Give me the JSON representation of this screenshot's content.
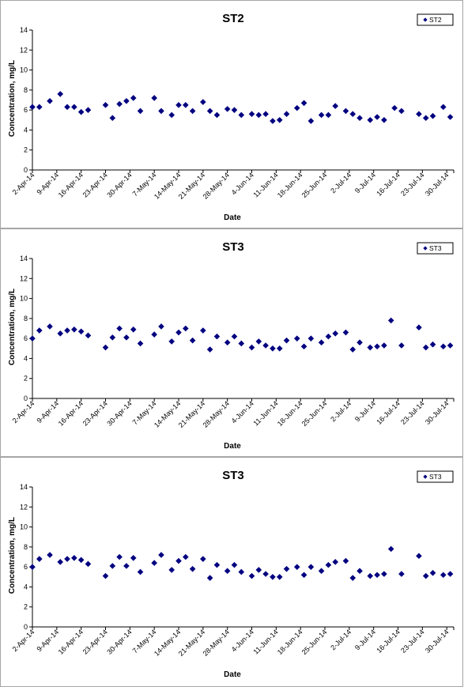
{
  "chart_data": [
    {
      "type": "scatter",
      "title": "ST2",
      "xlabel": "Date",
      "ylabel": "Concentration, mg/L",
      "ylim": [
        0,
        14
      ],
      "yticks": [
        0,
        2,
        4,
        6,
        8,
        10,
        12,
        14
      ],
      "xlim": [
        "2014-04-02",
        "2014-08-01"
      ],
      "xtick_labels": [
        "2-Apr-14",
        "9-Apr-14",
        "16-Apr-14",
        "23-Apr-14",
        "30-Apr-14",
        "7-May-14",
        "14-May-14",
        "21-May-14",
        "28-May-14",
        "4-Jun-14",
        "11-Jun-14",
        "18-Jun-14",
        "25-Jun-14",
        "2-Jul-14",
        "9-Jul-14",
        "16-Jul-14",
        "23-Jul-14",
        "30-Jul-14"
      ],
      "legend_position": "top-right",
      "marker_color": "#000080",
      "series": [
        {
          "name": "ST2",
          "points": [
            [
              "2014-04-02",
              6.3
            ],
            [
              "2014-04-04",
              6.3
            ],
            [
              "2014-04-07",
              6.9
            ],
            [
              "2014-04-10",
              7.6
            ],
            [
              "2014-04-12",
              6.3
            ],
            [
              "2014-04-14",
              6.3
            ],
            [
              "2014-04-16",
              5.8
            ],
            [
              "2014-04-18",
              6.0
            ],
            [
              "2014-04-23",
              6.5
            ],
            [
              "2014-04-25",
              5.2
            ],
            [
              "2014-04-27",
              6.6
            ],
            [
              "2014-04-29",
              6.9
            ],
            [
              "2014-05-01",
              7.2
            ],
            [
              "2014-05-03",
              5.9
            ],
            [
              "2014-05-07",
              7.2
            ],
            [
              "2014-05-09",
              5.9
            ],
            [
              "2014-05-12",
              5.5
            ],
            [
              "2014-05-14",
              6.5
            ],
            [
              "2014-05-16",
              6.5
            ],
            [
              "2014-05-18",
              5.9
            ],
            [
              "2014-05-21",
              6.8
            ],
            [
              "2014-05-23",
              5.9
            ],
            [
              "2014-05-25",
              5.5
            ],
            [
              "2014-05-28",
              6.1
            ],
            [
              "2014-05-30",
              6.0
            ],
            [
              "2014-06-01",
              5.5
            ],
            [
              "2014-06-04",
              5.6
            ],
            [
              "2014-06-06",
              5.5
            ],
            [
              "2014-06-08",
              5.6
            ],
            [
              "2014-06-10",
              4.9
            ],
            [
              "2014-06-12",
              5.0
            ],
            [
              "2014-06-14",
              5.6
            ],
            [
              "2014-06-17",
              6.2
            ],
            [
              "2014-06-19",
              6.7
            ],
            [
              "2014-06-21",
              4.9
            ],
            [
              "2014-06-24",
              5.5
            ],
            [
              "2014-06-26",
              5.5
            ],
            [
              "2014-06-28",
              6.4
            ],
            [
              "2014-07-01",
              5.9
            ],
            [
              "2014-07-03",
              5.6
            ],
            [
              "2014-07-05",
              5.2
            ],
            [
              "2014-07-08",
              5.0
            ],
            [
              "2014-07-10",
              5.3
            ],
            [
              "2014-07-12",
              5.0
            ],
            [
              "2014-07-15",
              6.2
            ],
            [
              "2014-07-17",
              5.9
            ],
            [
              "2014-07-22",
              5.6
            ],
            [
              "2014-07-24",
              5.2
            ],
            [
              "2014-07-26",
              5.4
            ],
            [
              "2014-07-29",
              6.3
            ],
            [
              "2014-07-31",
              5.3
            ]
          ]
        }
      ]
    },
    {
      "type": "scatter",
      "title": "ST3",
      "xlabel": "Date",
      "ylabel": "Concentration, mg/L",
      "ylim": [
        0,
        14
      ],
      "yticks": [
        0,
        2,
        4,
        6,
        8,
        10,
        12,
        14
      ],
      "xlim": [
        "2014-04-02",
        "2014-08-01"
      ],
      "xtick_labels": [
        "2-Apr-14",
        "9-Apr-14",
        "16-Apr-14",
        "23-Apr-14",
        "30-Apr-14",
        "7-May-14",
        "14-May-14",
        "21-May-14",
        "28-May-14",
        "4-Jun-14",
        "11-Jun-14",
        "18-Jun-14",
        "25-Jun-14",
        "2-Jul-14",
        "9-Jul-14",
        "16-Jul-14",
        "23-Jul-14",
        "30-Jul-14"
      ],
      "legend_position": "top-right",
      "marker_color": "#000080",
      "series": [
        {
          "name": "ST3",
          "points": [
            [
              "2014-04-02",
              6.0
            ],
            [
              "2014-04-04",
              6.8
            ],
            [
              "2014-04-07",
              7.2
            ],
            [
              "2014-04-10",
              6.5
            ],
            [
              "2014-04-12",
              6.8
            ],
            [
              "2014-04-14",
              6.9
            ],
            [
              "2014-04-16",
              6.7
            ],
            [
              "2014-04-18",
              6.3
            ],
            [
              "2014-04-23",
              5.1
            ],
            [
              "2014-04-25",
              6.1
            ],
            [
              "2014-04-27",
              7.0
            ],
            [
              "2014-04-29",
              6.1
            ],
            [
              "2014-05-01",
              6.9
            ],
            [
              "2014-05-03",
              5.5
            ],
            [
              "2014-05-07",
              6.4
            ],
            [
              "2014-05-09",
              7.2
            ],
            [
              "2014-05-12",
              5.7
            ],
            [
              "2014-05-14",
              6.6
            ],
            [
              "2014-05-16",
              7.0
            ],
            [
              "2014-05-18",
              5.8
            ],
            [
              "2014-05-21",
              6.8
            ],
            [
              "2014-05-23",
              4.9
            ],
            [
              "2014-05-25",
              6.2
            ],
            [
              "2014-05-28",
              5.6
            ],
            [
              "2014-05-30",
              6.2
            ],
            [
              "2014-06-01",
              5.5
            ],
            [
              "2014-06-04",
              5.1
            ],
            [
              "2014-06-06",
              5.7
            ],
            [
              "2014-06-08",
              5.3
            ],
            [
              "2014-06-10",
              5.0
            ],
            [
              "2014-06-12",
              5.0
            ],
            [
              "2014-06-14",
              5.8
            ],
            [
              "2014-06-17",
              6.0
            ],
            [
              "2014-06-19",
              5.2
            ],
            [
              "2014-06-21",
              6.0
            ],
            [
              "2014-06-24",
              5.6
            ],
            [
              "2014-06-26",
              6.2
            ],
            [
              "2014-06-28",
              6.5
            ],
            [
              "2014-07-01",
              6.6
            ],
            [
              "2014-07-03",
              4.9
            ],
            [
              "2014-07-05",
              5.6
            ],
            [
              "2014-07-08",
              5.1
            ],
            [
              "2014-07-10",
              5.2
            ],
            [
              "2014-07-12",
              5.3
            ],
            [
              "2014-07-14",
              7.8
            ],
            [
              "2014-07-17",
              5.3
            ],
            [
              "2014-07-22",
              7.1
            ],
            [
              "2014-07-24",
              5.1
            ],
            [
              "2014-07-26",
              5.4
            ],
            [
              "2014-07-29",
              5.2
            ],
            [
              "2014-07-31",
              5.3
            ]
          ]
        }
      ]
    },
    {
      "type": "scatter",
      "title": "ST3",
      "xlabel": "Date",
      "ylabel": "Concentration, mg/L",
      "ylim": [
        0,
        14
      ],
      "yticks": [
        0,
        2,
        4,
        6,
        8,
        10,
        12,
        14
      ],
      "xlim": [
        "2014-04-02",
        "2014-08-01"
      ],
      "xtick_labels": [
        "2-Apr-14",
        "9-Apr-14",
        "16-Apr-14",
        "23-Apr-14",
        "30-Apr-14",
        "7-May-14",
        "14-May-14",
        "21-May-14",
        "28-May-14",
        "4-Jun-14",
        "11-Jun-14",
        "18-Jun-14",
        "25-Jun-14",
        "2-Jul-14",
        "9-Jul-14",
        "16-Jul-14",
        "23-Jul-14",
        "30-Jul-14"
      ],
      "legend_position": "top-right",
      "marker_color": "#000080",
      "series": [
        {
          "name": "ST3",
          "points": [
            [
              "2014-04-02",
              6.0
            ],
            [
              "2014-04-04",
              6.8
            ],
            [
              "2014-04-07",
              7.2
            ],
            [
              "2014-04-10",
              6.5
            ],
            [
              "2014-04-12",
              6.8
            ],
            [
              "2014-04-14",
              6.9
            ],
            [
              "2014-04-16",
              6.7
            ],
            [
              "2014-04-18",
              6.3
            ],
            [
              "2014-04-23",
              5.1
            ],
            [
              "2014-04-25",
              6.1
            ],
            [
              "2014-04-27",
              7.0
            ],
            [
              "2014-04-29",
              6.1
            ],
            [
              "2014-05-01",
              6.9
            ],
            [
              "2014-05-03",
              5.5
            ],
            [
              "2014-05-07",
              6.4
            ],
            [
              "2014-05-09",
              7.2
            ],
            [
              "2014-05-12",
              5.7
            ],
            [
              "2014-05-14",
              6.6
            ],
            [
              "2014-05-16",
              7.0
            ],
            [
              "2014-05-18",
              5.8
            ],
            [
              "2014-05-21",
              6.8
            ],
            [
              "2014-05-23",
              4.9
            ],
            [
              "2014-05-25",
              6.2
            ],
            [
              "2014-05-28",
              5.6
            ],
            [
              "2014-05-30",
              6.2
            ],
            [
              "2014-06-01",
              5.5
            ],
            [
              "2014-06-04",
              5.1
            ],
            [
              "2014-06-06",
              5.7
            ],
            [
              "2014-06-08",
              5.3
            ],
            [
              "2014-06-10",
              5.0
            ],
            [
              "2014-06-12",
              5.0
            ],
            [
              "2014-06-14",
              5.8
            ],
            [
              "2014-06-17",
              6.0
            ],
            [
              "2014-06-19",
              5.2
            ],
            [
              "2014-06-21",
              6.0
            ],
            [
              "2014-06-24",
              5.6
            ],
            [
              "2014-06-26",
              6.2
            ],
            [
              "2014-06-28",
              6.5
            ],
            [
              "2014-07-01",
              6.6
            ],
            [
              "2014-07-03",
              4.9
            ],
            [
              "2014-07-05",
              5.6
            ],
            [
              "2014-07-08",
              5.1
            ],
            [
              "2014-07-10",
              5.2
            ],
            [
              "2014-07-12",
              5.3
            ],
            [
              "2014-07-14",
              7.8
            ],
            [
              "2014-07-17",
              5.3
            ],
            [
              "2014-07-22",
              7.1
            ],
            [
              "2014-07-24",
              5.1
            ],
            [
              "2014-07-26",
              5.4
            ],
            [
              "2014-07-29",
              5.2
            ],
            [
              "2014-07-31",
              5.3
            ]
          ]
        }
      ]
    }
  ]
}
